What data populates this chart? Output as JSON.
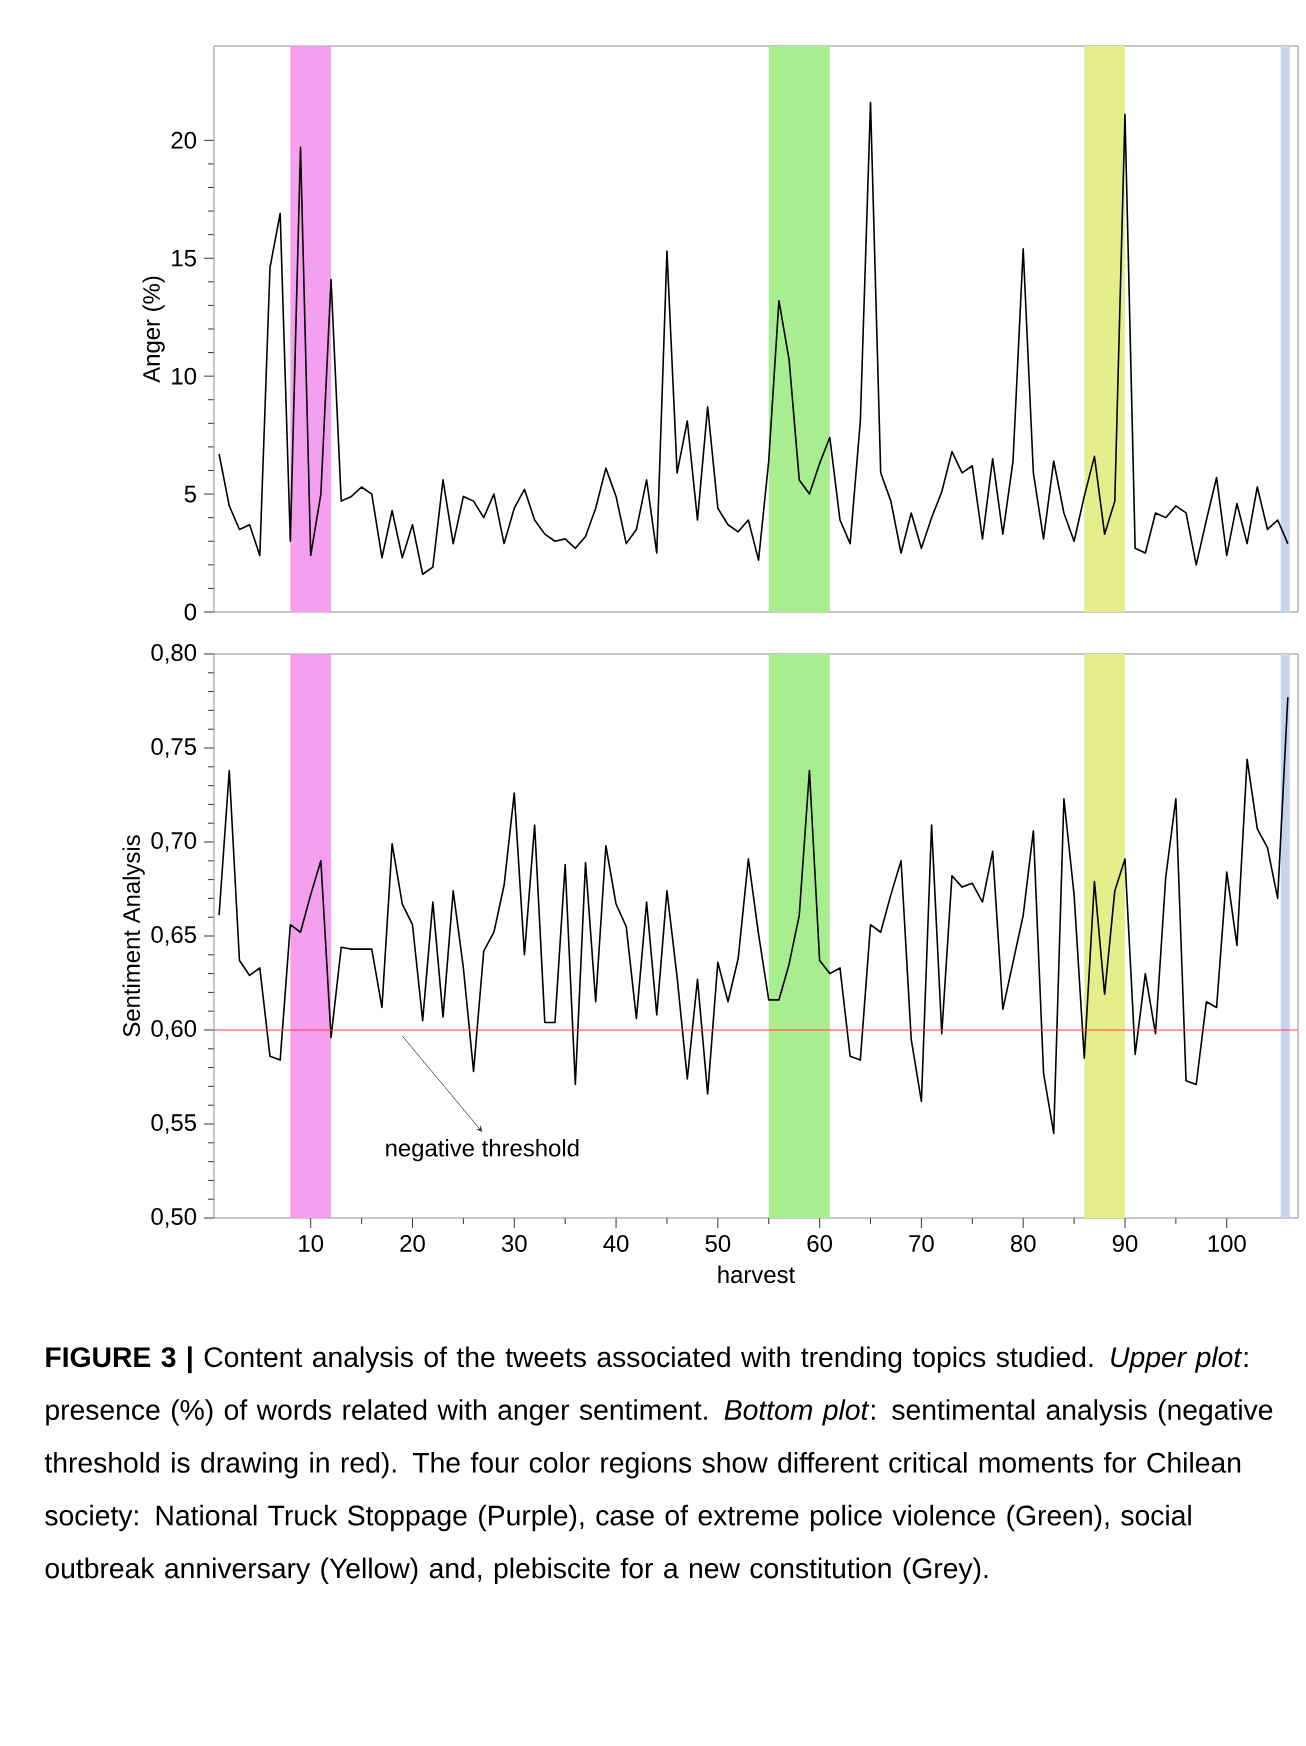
{
  "chart_data": [
    {
      "type": "line",
      "ylabel": "Anger (%)",
      "x": [
        1,
        2,
        3,
        4,
        5,
        6,
        7,
        8,
        9,
        10,
        11,
        12,
        13,
        14,
        15,
        16,
        17,
        18,
        19,
        20,
        21,
        22,
        23,
        24,
        25,
        26,
        27,
        28,
        29,
        30,
        31,
        32,
        33,
        34,
        35,
        36,
        37,
        38,
        39,
        40,
        41,
        42,
        43,
        44,
        45,
        46,
        47,
        48,
        49,
        50,
        51,
        52,
        53,
        54,
        55,
        56,
        57,
        58,
        59,
        60,
        61,
        62,
        63,
        64,
        65,
        66,
        67,
        68,
        69,
        70,
        71,
        72,
        73,
        74,
        75,
        76,
        77,
        78,
        79,
        80,
        81,
        82,
        83,
        84,
        85,
        86,
        87,
        88,
        89,
        90,
        91,
        92,
        93,
        94,
        95,
        96,
        97,
        98,
        99,
        100,
        101,
        102,
        103,
        104,
        105,
        106
      ],
      "series": [
        {
          "color": "#000000",
          "values": [
            6.7,
            4.5,
            3.5,
            3.7,
            2.4,
            14.6,
            16.9,
            3.0,
            19.7,
            2.4,
            5.0,
            14.1,
            4.7,
            4.9,
            5.3,
            5.0,
            2.3,
            4.3,
            2.3,
            3.7,
            1.6,
            1.9,
            5.6,
            2.9,
            4.9,
            4.7,
            4.0,
            5.0,
            2.9,
            4.4,
            5.2,
            3.9,
            3.3,
            3.0,
            3.1,
            2.7,
            3.2,
            4.4,
            6.1,
            4.9,
            2.9,
            3.5,
            5.6,
            2.5,
            15.3,
            5.9,
            8.1,
            3.9,
            8.7,
            4.4,
            3.7,
            3.4,
            3.9,
            2.2,
            6.4,
            13.2,
            10.7,
            5.6,
            5.0,
            6.3,
            7.4,
            3.9,
            2.9,
            8.1,
            21.6,
            5.9,
            4.7,
            2.5,
            4.2,
            2.7,
            4.0,
            5.1,
            6.8,
            5.9,
            6.2,
            3.1,
            6.5,
            3.3,
            6.4,
            15.4,
            5.9,
            3.1,
            6.4,
            4.2,
            3.0,
            4.9,
            6.6,
            3.3,
            4.7,
            21.1,
            2.7,
            2.5,
            4.2,
            4.0,
            4.5,
            4.2,
            2.0,
            3.9,
            5.7,
            2.4,
            4.6,
            2.9,
            5.3,
            3.5,
            3.9,
            2.9
          ]
        }
      ],
      "xlim": [
        0.5,
        107
      ],
      "ylim": [
        0,
        24
      ],
      "yticks": [
        0,
        5,
        10,
        15,
        20
      ],
      "tick_labels": "y",
      "bands": [
        {
          "axis": "x",
          "from": 8,
          "to": 12,
          "color": "#f4a0ee"
        },
        {
          "axis": "x",
          "from": 55,
          "to": 61,
          "color": "#a8ee90"
        },
        {
          "axis": "x",
          "from": 86,
          "to": 90,
          "color": "#e6ee8c"
        },
        {
          "axis": "x",
          "from": 105.3,
          "to": 106.2,
          "color": "#c8d4f0"
        }
      ]
    },
    {
      "type": "line",
      "xlabel": "harvest",
      "ylabel": "Sentiment Analysis",
      "x": [
        1,
        2,
        3,
        4,
        5,
        6,
        7,
        8,
        9,
        10,
        11,
        12,
        13,
        14,
        15,
        16,
        17,
        18,
        19,
        20,
        21,
        22,
        23,
        24,
        25,
        26,
        27,
        28,
        29,
        30,
        31,
        32,
        33,
        34,
        35,
        36,
        37,
        38,
        39,
        40,
        41,
        42,
        43,
        44,
        45,
        46,
        47,
        48,
        49,
        50,
        51,
        52,
        53,
        54,
        55,
        56,
        57,
        58,
        59,
        60,
        61,
        62,
        63,
        64,
        65,
        66,
        67,
        68,
        69,
        70,
        71,
        72,
        73,
        74,
        75,
        76,
        77,
        78,
        79,
        80,
        81,
        82,
        83,
        84,
        85,
        86,
        87,
        88,
        89,
        90,
        91,
        92,
        93,
        94,
        95,
        96,
        97,
        98,
        99,
        100,
        101,
        102,
        103,
        104,
        105,
        106
      ],
      "series": [
        {
          "color": "#000000",
          "values": [
            0.661,
            0.738,
            0.637,
            0.629,
            0.633,
            0.586,
            0.584,
            0.656,
            0.652,
            0.672,
            0.69,
            0.596,
            0.644,
            0.643,
            0.643,
            0.643,
            0.612,
            0.699,
            0.667,
            0.656,
            0.605,
            0.668,
            0.607,
            0.674,
            0.633,
            0.578,
            0.642,
            0.652,
            0.677,
            0.726,
            0.64,
            0.709,
            0.604,
            0.604,
            0.688,
            0.571,
            0.689,
            0.615,
            0.698,
            0.667,
            0.655,
            0.606,
            0.668,
            0.608,
            0.674,
            0.628,
            0.574,
            0.627,
            0.566,
            0.636,
            0.615,
            0.638,
            0.691,
            0.651,
            0.616,
            0.616,
            0.635,
            0.661,
            0.738,
            0.637,
            0.63,
            0.633,
            0.586,
            0.584,
            0.656,
            0.652,
            0.672,
            0.69,
            0.595,
            0.562,
            0.709,
            0.598,
            0.682,
            0.676,
            0.678,
            0.668,
            0.695,
            0.611,
            0.636,
            0.661,
            0.706,
            0.577,
            0.545,
            0.723,
            0.672,
            0.585,
            0.679,
            0.619,
            0.674,
            0.691,
            0.587,
            0.63,
            0.598,
            0.681,
            0.723,
            0.573,
            0.571,
            0.615,
            0.612,
            0.684,
            0.645,
            0.744,
            0.707,
            0.697,
            0.67,
            0.777
          ]
        }
      ],
      "xlim": [
        0.5,
        107
      ],
      "xticks": [
        10,
        20,
        30,
        40,
        50,
        60,
        70,
        80,
        90,
        100
      ],
      "ylim": [
        0.5,
        0.8
      ],
      "yticks": [
        {
          "value": 0.5,
          "label": "0,50"
        },
        {
          "value": 0.55,
          "label": "0,55"
        },
        {
          "value": 0.6,
          "label": "0,60"
        },
        {
          "value": 0.65,
          "label": "0,65"
        },
        {
          "value": 0.7,
          "label": "0,70"
        },
        {
          "value": 0.75,
          "label": "0,75"
        },
        {
          "value": 0.8,
          "label": "0,80"
        }
      ],
      "ref_lines": [
        {
          "axis": "y",
          "value": 0.6,
          "color": "#ff4040"
        }
      ],
      "bands": [
        {
          "axis": "x",
          "from": 8,
          "to": 12,
          "color": "#f4a0ee"
        },
        {
          "axis": "x",
          "from": 55,
          "to": 61,
          "color": "#a8ee90"
        },
        {
          "axis": "x",
          "from": 86,
          "to": 90,
          "color": "#e6ee8c"
        },
        {
          "axis": "x",
          "from": 105.3,
          "to": 106.2,
          "color": "#c8d4f0"
        }
      ],
      "annotations": [
        {
          "text": "negative threshold",
          "x": 19,
          "y": 0.6
        },
        "**FIGURE 3 |** Content analysis of the tweets associated with trending topics studied. *Upper plot*: presence (%) of words related with anger sentiment. *Bottom plot*: sentimental analysis (negative threshold is drawing in red). The four color regions show different critical moments for Chilean society: National Truck Stoppage (Purple), case of extreme police violence (Green), social outbreak anniversary (Yellow) and, plebiscite for a new constitution (Grey)."
      ]
    }
  ]
}
